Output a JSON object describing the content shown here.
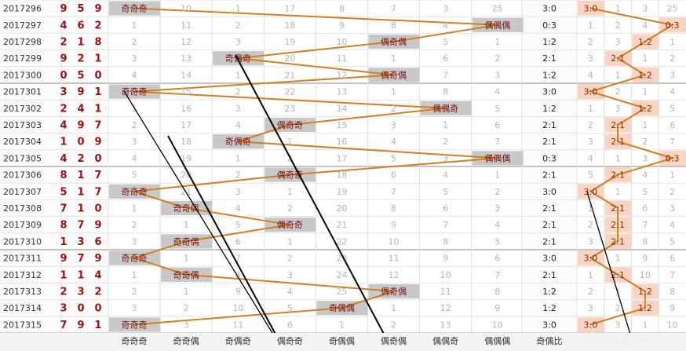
{
  "chart_data": {
    "type": "table",
    "headers": {
      "pattern_columns": [
        "奇奇奇",
        "奇奇偶",
        "奇偶奇",
        "偶奇奇",
        "奇偶偶",
        "偶奇偶",
        "偶偶奇",
        "偶偶偶"
      ],
      "ratio_label": "奇偶比"
    },
    "ratio_columns": [
      "3:0",
      "2:1",
      "1:2",
      "0:3"
    ],
    "rows": [
      {
        "issue": "2017296",
        "digits": [
          "9",
          "5",
          "9"
        ],
        "pattern": "奇奇奇",
        "ratio": "3:0",
        "omit": [
          0,
          10,
          1,
          17,
          8,
          7,
          3,
          25
        ],
        "ratio_omit": [
          0,
          1,
          3,
          25
        ]
      },
      {
        "issue": "2017297",
        "digits": [
          "4",
          "6",
          "2"
        ],
        "pattern": "偶偶偶",
        "ratio": "0:3",
        "omit": [
          1,
          11,
          2,
          18,
          9,
          8,
          4,
          0
        ],
        "ratio_omit": [
          1,
          2,
          4,
          0
        ]
      },
      {
        "issue": "2017298",
        "digits": [
          "2",
          "1",
          "8"
        ],
        "pattern": "偶奇偶",
        "ratio": "1:2",
        "omit": [
          2,
          12,
          3,
          19,
          10,
          0,
          5,
          1
        ],
        "ratio_omit": [
          2,
          3,
          0,
          1
        ]
      },
      {
        "issue": "2017299",
        "digits": [
          "9",
          "2",
          "1"
        ],
        "pattern": "奇偶奇",
        "ratio": "2:1",
        "omit": [
          3,
          13,
          0,
          20,
          11,
          1,
          6,
          2
        ],
        "ratio_omit": [
          3,
          0,
          1,
          2
        ]
      },
      {
        "issue": "2017300",
        "digits": [
          "0",
          "5",
          "0"
        ],
        "pattern": "偶奇偶",
        "ratio": "1:2",
        "omit": [
          4,
          14,
          1,
          21,
          12,
          0,
          7,
          3
        ],
        "ratio_omit": [
          4,
          1,
          0,
          3
        ]
      },
      {
        "issue": "2017301",
        "digits": [
          "3",
          "9",
          "1"
        ],
        "pattern": "奇奇奇",
        "ratio": "3:0",
        "omit": [
          0,
          15,
          2,
          22,
          13,
          1,
          8,
          4
        ],
        "ratio_omit": [
          0,
          2,
          1,
          4
        ]
      },
      {
        "issue": "2017302",
        "digits": [
          "2",
          "4",
          "1"
        ],
        "pattern": "偶偶奇",
        "ratio": "1:2",
        "omit": [
          1,
          16,
          3,
          23,
          14,
          2,
          0,
          5
        ],
        "ratio_omit": [
          1,
          3,
          0,
          5
        ]
      },
      {
        "issue": "2017303",
        "digits": [
          "4",
          "9",
          "7"
        ],
        "pattern": "偶奇奇",
        "ratio": "2:1",
        "omit": [
          2,
          17,
          4,
          0,
          15,
          3,
          1,
          6
        ],
        "ratio_omit": [
          2,
          0,
          1,
          6
        ]
      },
      {
        "issue": "2017304",
        "digits": [
          "1",
          "0",
          "9"
        ],
        "pattern": "奇偶奇",
        "ratio": "2:1",
        "omit": [
          3,
          18,
          0,
          1,
          16,
          4,
          2,
          7
        ],
        "ratio_omit": [
          3,
          0,
          2,
          7
        ]
      },
      {
        "issue": "2017305",
        "digits": [
          "4",
          "2",
          "0"
        ],
        "pattern": "偶偶偶",
        "ratio": "0:3",
        "omit": [
          4,
          19,
          1,
          2,
          17,
          5,
          3,
          0
        ],
        "ratio_omit": [
          4,
          1,
          3,
          0
        ]
      },
      {
        "issue": "2017306",
        "digits": [
          "8",
          "1",
          "7"
        ],
        "pattern": "偶奇奇",
        "ratio": "2:1",
        "omit": [
          5,
          20,
          2,
          0,
          18,
          6,
          4,
          1
        ],
        "ratio_omit": [
          5,
          0,
          4,
          1
        ]
      },
      {
        "issue": "2017307",
        "digits": [
          "5",
          "1",
          "7"
        ],
        "pattern": "奇奇奇",
        "ratio": "3:0",
        "omit": [
          0,
          21,
          3,
          1,
          19,
          7,
          5,
          2
        ],
        "ratio_omit": [
          0,
          1,
          5,
          2
        ]
      },
      {
        "issue": "2017308",
        "digits": [
          "7",
          "1",
          "0"
        ],
        "pattern": "奇奇偶",
        "ratio": "2:1",
        "omit": [
          1,
          0,
          4,
          2,
          20,
          8,
          6,
          3
        ],
        "ratio_omit": [
          1,
          0,
          6,
          3
        ]
      },
      {
        "issue": "2017309",
        "digits": [
          "8",
          "7",
          "9"
        ],
        "pattern": "偶奇奇",
        "ratio": "2:1",
        "omit": [
          2,
          1,
          5,
          0,
          21,
          9,
          7,
          4
        ],
        "ratio_omit": [
          2,
          0,
          7,
          4
        ]
      },
      {
        "issue": "2017310",
        "digits": [
          "1",
          "3",
          "6"
        ],
        "pattern": "奇奇偶",
        "ratio": "2:1",
        "omit": [
          3,
          0,
          6,
          1,
          22,
          10,
          8,
          5
        ],
        "ratio_omit": [
          3,
          0,
          8,
          5
        ]
      },
      {
        "issue": "2017311",
        "digits": [
          "9",
          "7",
          "9"
        ],
        "pattern": "奇奇奇",
        "ratio": "3:0",
        "omit": [
          0,
          1,
          7,
          2,
          23,
          11,
          9,
          6
        ],
        "ratio_omit": [
          0,
          1,
          9,
          6
        ]
      },
      {
        "issue": "2017312",
        "digits": [
          "1",
          "1",
          "4"
        ],
        "pattern": "奇奇偶",
        "ratio": "2:1",
        "omit": [
          1,
          0,
          8,
          3,
          24,
          12,
          10,
          7
        ],
        "ratio_omit": [
          1,
          0,
          10,
          7
        ]
      },
      {
        "issue": "2017313",
        "digits": [
          "2",
          "3",
          "2"
        ],
        "pattern": "偶奇偶",
        "ratio": "1:2",
        "omit": [
          2,
          1,
          9,
          4,
          25,
          0,
          11,
          8
        ],
        "ratio_omit": [
          2,
          1,
          0,
          8
        ]
      },
      {
        "issue": "2017314",
        "digits": [
          "3",
          "0",
          "0"
        ],
        "pattern": "奇偶偶",
        "ratio": "1:2",
        "omit": [
          3,
          2,
          10,
          5,
          0,
          1,
          12,
          9
        ],
        "ratio_omit": [
          3,
          2,
          0,
          9
        ]
      },
      {
        "issue": "2017315",
        "digits": [
          "7",
          "9",
          "1"
        ],
        "pattern": "奇奇奇",
        "ratio": "3:0",
        "omit": [
          0,
          3,
          11,
          6,
          1,
          2,
          13,
          10
        ],
        "ratio_omit": [
          0,
          3,
          1,
          10
        ]
      }
    ],
    "watermark": "头条号 / 彩多多",
    "colors": {
      "line": "#d08020",
      "highlight": "#c8c8c8",
      "ratio_highlight": "#f8d4c4",
      "digit": "#9b1212",
      "arrow": "#000000"
    }
  }
}
